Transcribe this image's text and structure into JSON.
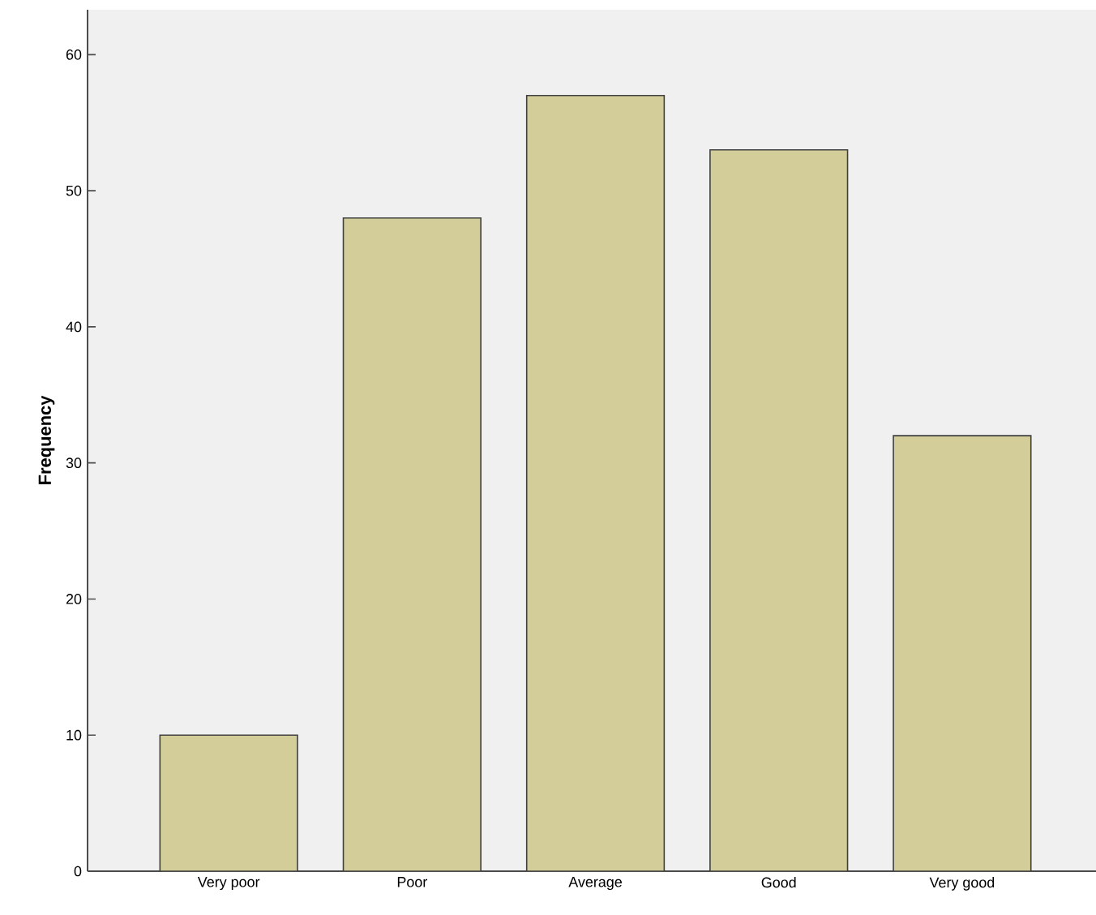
{
  "chart_data": {
    "type": "bar",
    "ylabel": "Frequency",
    "categories": [
      "Very poor",
      "Poor",
      "Average",
      "Good",
      "Very good"
    ],
    "values": [
      10,
      48,
      57,
      53,
      32
    ],
    "color": "#d3ce99",
    "ylim": [
      0,
      63.3
    ],
    "yticks": [
      0,
      10,
      20,
      30,
      40,
      50,
      60
    ],
    "grid": false
  }
}
